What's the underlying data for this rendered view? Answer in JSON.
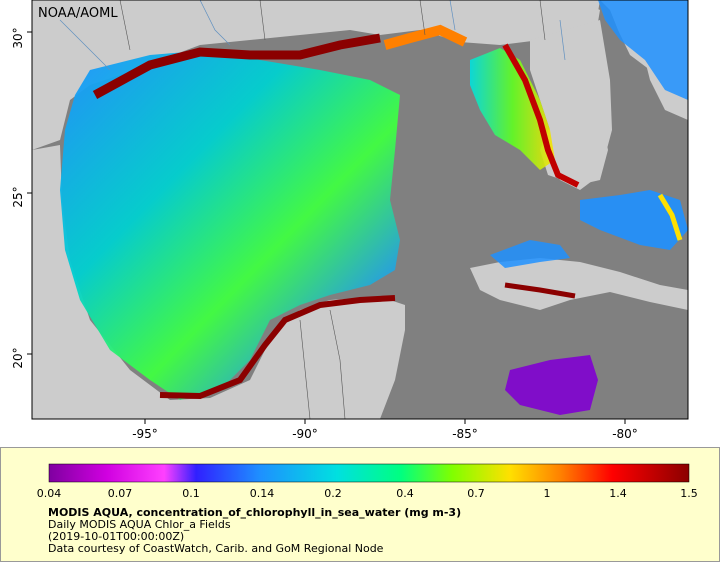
{
  "source_label": "NOAA/AOML",
  "latitude_ticks": [
    "30°",
    "25°",
    "20°"
  ],
  "longitude_ticks": [
    "-95°",
    "-90°",
    "-85°",
    "-80°"
  ],
  "colorbar": {
    "tick_labels": [
      "0.04",
      "0.07",
      "0.1",
      "0.14",
      "0.2",
      "0.4",
      "0.7",
      "1",
      "1.4",
      "1.5"
    ],
    "colors": [
      "#7f00a0",
      "#d000e0",
      "#ff40ff",
      "#3020ff",
      "#1e90ff",
      "#00e0e0",
      "#00ff80",
      "#80ff00",
      "#ffe000",
      "#ff8000",
      "#ff0000",
      "#8b0000"
    ]
  },
  "info": {
    "title": "MODIS AQUA, concentration_of_chlorophyll_in_sea_water (mg m-3)",
    "line1": "Daily MODIS AQUA Chlor_a Fields",
    "line2": "(2019-10-01T00:00:00Z)",
    "line3": "Data courtesy of CoastWatch, Carib. and GoM Regional Node"
  },
  "colors": {
    "land": "#cccccc",
    "no_data": "#808080",
    "legend_bg": "#ffffcc"
  }
}
